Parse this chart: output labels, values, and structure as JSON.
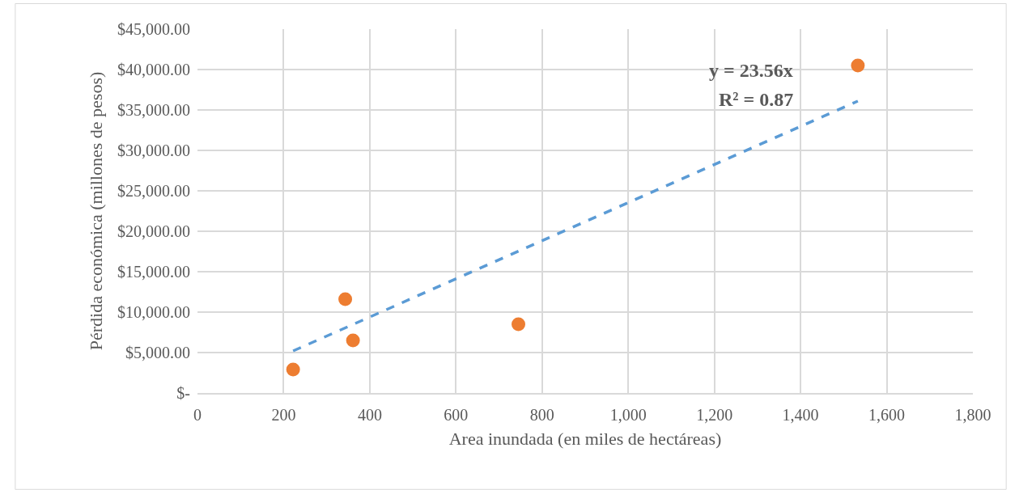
{
  "chart_data": {
    "type": "scatter",
    "xlabel": "Area inundada (en miles de hectáreas)",
    "ylabel": "Pérdida económica (millones de pesos)",
    "series": [
      {
        "color": "#ed7d31",
        "x": [
          222,
          343,
          361,
          745,
          1533
        ],
        "values": [
          2900,
          11600,
          6500,
          8500,
          40500
        ],
        "marker": "circle"
      },
      {
        "type": "line",
        "color": "#5b9bd5",
        "x": [
          222,
          1533
        ],
        "values": [
          5200,
          36100
        ],
        "line_style": "dashed",
        "marker": "none"
      }
    ],
    "annotations": [
      "y = 23.56x",
      "R² = 0.87"
    ],
    "xlim": [
      0,
      1800
    ],
    "xticks": [
      0,
      {
        "value": 200,
        "label": "200"
      },
      {
        "value": 400,
        "label": "400"
      },
      {
        "value": 600,
        "label": "600"
      },
      {
        "value": 800,
        "label": "800"
      },
      {
        "value": 1000,
        "label": "1,000"
      },
      {
        "value": 1200,
        "label": "1,200"
      },
      {
        "value": 1400,
        "label": "1,400"
      },
      {
        "value": 1600,
        "label": "1,600"
      },
      {
        "value": 1800,
        "label": "1,800"
      }
    ],
    "ylim": [
      0,
      45000
    ],
    "yticks": [
      {
        "value": 0,
        "label": "$-"
      },
      {
        "value": 5000,
        "label": "$5,000.00"
      },
      {
        "value": 10000,
        "label": "$10,000.00"
      },
      {
        "value": 15000,
        "label": "$15,000.00"
      },
      {
        "value": 20000,
        "label": "$20,000.00"
      },
      {
        "value": 25000,
        "label": "$25,000.00"
      },
      {
        "value": 30000,
        "label": "$30,000.00"
      },
      {
        "value": 35000,
        "label": "$35,000.00"
      },
      {
        "value": 40000,
        "label": "$40,000.00"
      },
      {
        "value": 45000,
        "label": "$45,000.00"
      }
    ],
    "grid": true
  }
}
